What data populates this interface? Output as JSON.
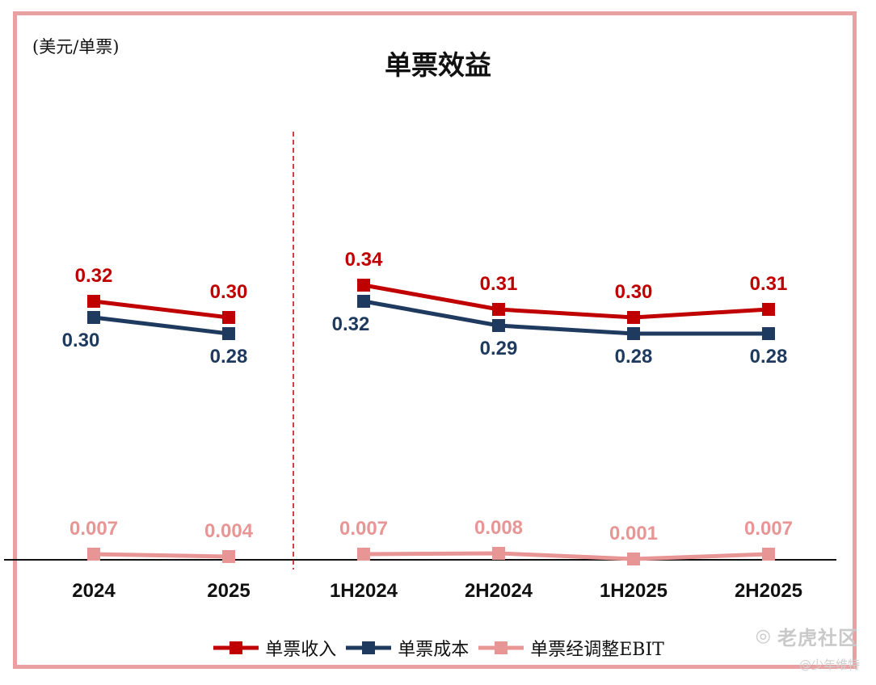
{
  "chart_data": {
    "type": "line",
    "title": "单票效益",
    "unit_label": "(美元/单票)",
    "categories": [
      "2024",
      "2025",
      "1H2024",
      "2H2024",
      "1H2025",
      "2H2025"
    ],
    "groups": [
      [
        "2024",
        "2025"
      ],
      [
        "1H2024",
        "2H2024",
        "1H2025",
        "2H2025"
      ]
    ],
    "series": [
      {
        "name": "单票收入",
        "color": "#c00000",
        "values": [
          0.32,
          0.3,
          0.34,
          0.31,
          0.3,
          0.31
        ],
        "labels": [
          "0.32",
          "0.30",
          "0.34",
          "0.31",
          "0.30",
          "0.31"
        ],
        "label_pos": "above"
      },
      {
        "name": "单票成本",
        "color": "#1f3a5f",
        "values": [
          0.3,
          0.28,
          0.32,
          0.29,
          0.28,
          0.28
        ],
        "labels": [
          "0.30",
          "0.28",
          "0.32",
          "0.29",
          "0.28",
          "0.28"
        ],
        "label_pos": "below"
      },
      {
        "name": "单票经调整EBIT",
        "color": "#e89595",
        "values": [
          0.007,
          0.004,
          0.007,
          0.008,
          0.001,
          0.007
        ],
        "labels": [
          "0.007",
          "0.004",
          "0.007",
          "0.008",
          "0.001",
          "0.007"
        ],
        "label_pos": "above"
      }
    ],
    "ylim": [
      0,
      0.36
    ],
    "grid": false,
    "divider": "dashed line between 2025 and 1H2024",
    "legend_position": "bottom"
  },
  "watermark": {
    "logo_text": "老虎社区",
    "user": "@少年维特"
  }
}
